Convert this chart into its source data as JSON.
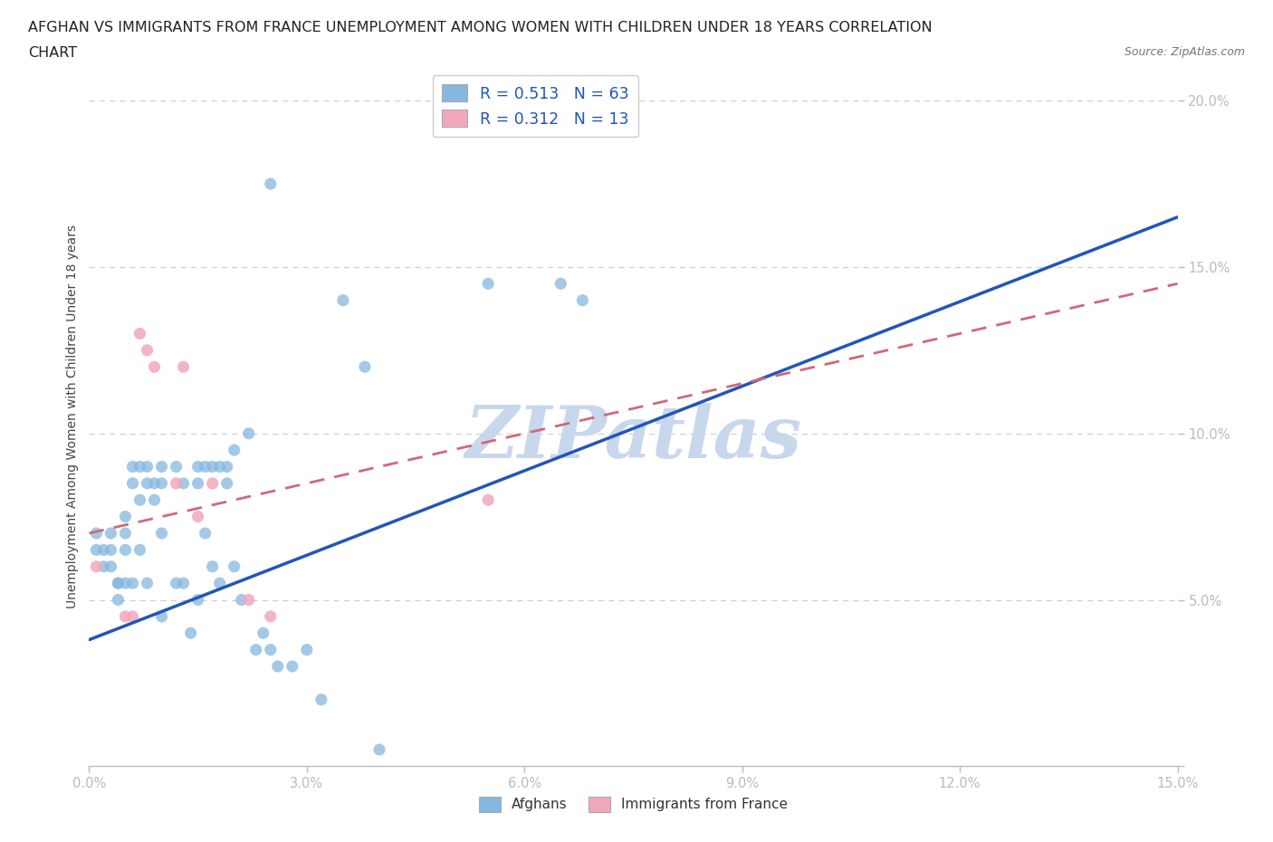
{
  "title_line1": "AFGHAN VS IMMIGRANTS FROM FRANCE UNEMPLOYMENT AMONG WOMEN WITH CHILDREN UNDER 18 YEARS CORRELATION",
  "title_line2": "CHART",
  "source_text": "Source: ZipAtlas.com",
  "ylabel": "Unemployment Among Women with Children Under 18 years",
  "xlim": [
    0.0,
    0.15
  ],
  "ylim": [
    0.0,
    0.21
  ],
  "xticks": [
    0.0,
    0.03,
    0.06,
    0.09,
    0.12,
    0.15
  ],
  "yticks": [
    0.0,
    0.05,
    0.1,
    0.15,
    0.2
  ],
  "ytick_labels": [
    "",
    "5.0%",
    "10.0%",
    "15.0%",
    "20.0%"
  ],
  "xtick_labels": [
    "0.0%",
    "3.0%",
    "6.0%",
    "9.0%",
    "12.0%",
    "15.0%"
  ],
  "grid_color": "#d0d0d0",
  "background_color": "#ffffff",
  "watermark": "ZIPatlas",
  "watermark_color": "#c8d8ec",
  "blue_color": "#85b8e0",
  "pink_color": "#f2a8bc",
  "line_blue_color": "#2255bb",
  "line_pink_color": "#d06878",
  "R_blue": 0.513,
  "N_blue": 63,
  "R_pink": 0.312,
  "N_pink": 13,
  "afghans_label": "Afghans",
  "france_label": "Immigrants from France",
  "blue_scatter_x": [
    0.001,
    0.001,
    0.002,
    0.002,
    0.003,
    0.003,
    0.003,
    0.004,
    0.004,
    0.004,
    0.005,
    0.005,
    0.005,
    0.005,
    0.006,
    0.006,
    0.006,
    0.007,
    0.007,
    0.007,
    0.008,
    0.008,
    0.008,
    0.009,
    0.009,
    0.01,
    0.01,
    0.01,
    0.01,
    0.012,
    0.012,
    0.013,
    0.013,
    0.014,
    0.015,
    0.015,
    0.015,
    0.016,
    0.016,
    0.017,
    0.017,
    0.018,
    0.018,
    0.019,
    0.019,
    0.02,
    0.02,
    0.021,
    0.022,
    0.023,
    0.024,
    0.025,
    0.026,
    0.028,
    0.03,
    0.032,
    0.035,
    0.038,
    0.04,
    0.055,
    0.065,
    0.068,
    0.025
  ],
  "blue_scatter_y": [
    0.065,
    0.07,
    0.06,
    0.065,
    0.07,
    0.065,
    0.06,
    0.055,
    0.055,
    0.05,
    0.075,
    0.07,
    0.065,
    0.055,
    0.09,
    0.085,
    0.055,
    0.09,
    0.08,
    0.065,
    0.09,
    0.085,
    0.055,
    0.085,
    0.08,
    0.09,
    0.085,
    0.07,
    0.045,
    0.09,
    0.055,
    0.085,
    0.055,
    0.04,
    0.09,
    0.085,
    0.05,
    0.09,
    0.07,
    0.09,
    0.06,
    0.09,
    0.055,
    0.09,
    0.085,
    0.095,
    0.06,
    0.05,
    0.1,
    0.035,
    0.04,
    0.035,
    0.03,
    0.03,
    0.035,
    0.02,
    0.14,
    0.12,
    0.005,
    0.145,
    0.145,
    0.14,
    0.175
  ],
  "pink_scatter_x": [
    0.001,
    0.005,
    0.006,
    0.007,
    0.008,
    0.009,
    0.012,
    0.013,
    0.015,
    0.017,
    0.022,
    0.025,
    0.055
  ],
  "pink_scatter_y": [
    0.06,
    0.045,
    0.045,
    0.13,
    0.125,
    0.12,
    0.085,
    0.12,
    0.075,
    0.085,
    0.05,
    0.045,
    0.08
  ],
  "blue_line_x": [
    0.0,
    0.15
  ],
  "blue_line_y": [
    0.038,
    0.165
  ],
  "pink_line_x": [
    0.0,
    0.15
  ],
  "pink_line_y": [
    0.07,
    0.145
  ]
}
